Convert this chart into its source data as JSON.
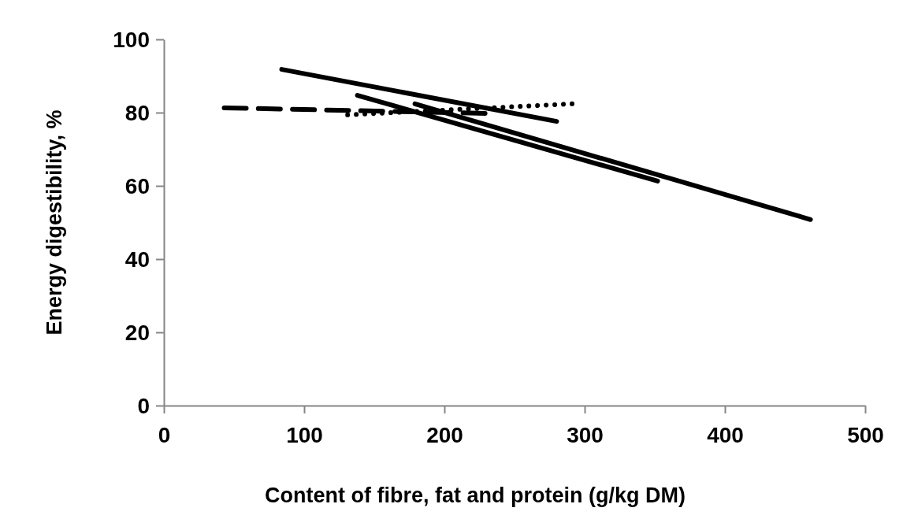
{
  "chart_data": {
    "type": "line",
    "xlabel": "Content of fibre, fat and protein (g/kg DM)",
    "ylabel": "Energy digestibility, %",
    "xlim": [
      0,
      500
    ],
    "xticks": [
      0,
      100,
      200,
      300,
      400,
      500
    ],
    "ylim": [
      0,
      100
    ],
    "yticks": [
      0,
      20,
      40,
      60,
      80,
      100
    ],
    "grid": false,
    "marker": "none",
    "series": [
      {
        "color": "#000000",
        "line_style": "solid",
        "x": [
          84,
          280
        ],
        "values": [
          91.8,
          77.6
        ]
      },
      {
        "color": "#000000",
        "line_style": "solid",
        "x": [
          138,
          352
        ],
        "values": [
          84.7,
          61.3
        ]
      },
      {
        "color": "#000000",
        "line_style": "solid",
        "x": [
          179,
          461
        ],
        "values": [
          82.4,
          50.8
        ]
      },
      {
        "color": "#000000",
        "line_style": "dashed",
        "x": [
          43,
          229
        ],
        "values": [
          81.3,
          79.8
        ]
      },
      {
        "color": "#000000",
        "line_style": "dotted",
        "x": [
          131,
          291
        ],
        "values": [
          79.4,
          82.4
        ]
      }
    ]
  }
}
